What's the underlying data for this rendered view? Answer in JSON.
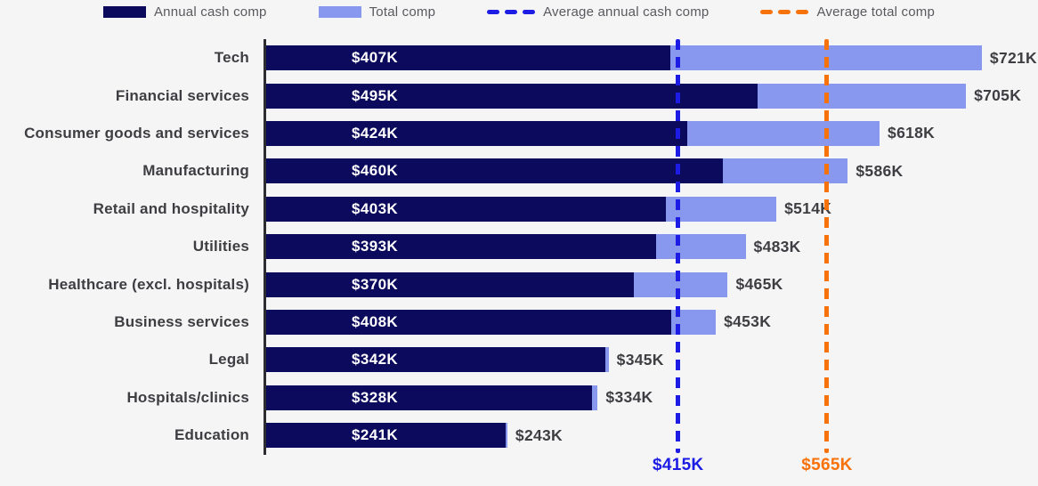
{
  "legend": {
    "items": [
      {
        "label": "Annual cash comp",
        "type": "swatch",
        "color": "#0b0a5c"
      },
      {
        "label": "Total comp",
        "type": "swatch",
        "color": "#8798ee"
      },
      {
        "label": "Average annual cash comp",
        "type": "dash",
        "color": "#1c1ce4"
      },
      {
        "label": "Average total comp",
        "type": "dash",
        "color": "#f8720c"
      }
    ]
  },
  "chart_data": {
    "type": "bar",
    "orientation": "horizontal",
    "title": "",
    "xlabel": "",
    "ylabel": "",
    "xlim": [
      0,
      775
    ],
    "grid": false,
    "legend_position": "top-center",
    "categories": [
      "Tech",
      "Financial services",
      "Consumer goods and services",
      "Manufacturing",
      "Retail and hospitality",
      "Utilities",
      "Healthcare (excl. hospitals)",
      "Business services",
      "Legal",
      "Hospitals/clinics",
      "Education"
    ],
    "series": [
      {
        "name": "Annual cash comp",
        "color": "#0b0a5c",
        "values": [
          407,
          495,
          424,
          460,
          403,
          393,
          370,
          408,
          342,
          328,
          241
        ],
        "labels": [
          "$407K",
          "$495K",
          "$424K",
          "$460K",
          "$403K",
          "$393K",
          "$370K",
          "$408K",
          "$342K",
          "$328K",
          "$241K"
        ]
      },
      {
        "name": "Total comp",
        "color": "#8798ee",
        "values": [
          721,
          705,
          618,
          586,
          514,
          483,
          465,
          453,
          345,
          334,
          243
        ],
        "labels": [
          "$721K",
          "$705K",
          "$618K",
          "$586K",
          "$514K",
          "$483K",
          "$465K",
          "$453K",
          "$345K",
          "$334K",
          "$243K"
        ]
      }
    ],
    "reference_lines": [
      {
        "name": "Average annual cash comp",
        "value": 415,
        "label": "$415K",
        "color": "#1c1ce4",
        "style": "dashed"
      },
      {
        "name": "Average total comp",
        "value": 565,
        "label": "$565K",
        "color": "#f8720c",
        "style": "dashed"
      }
    ]
  }
}
